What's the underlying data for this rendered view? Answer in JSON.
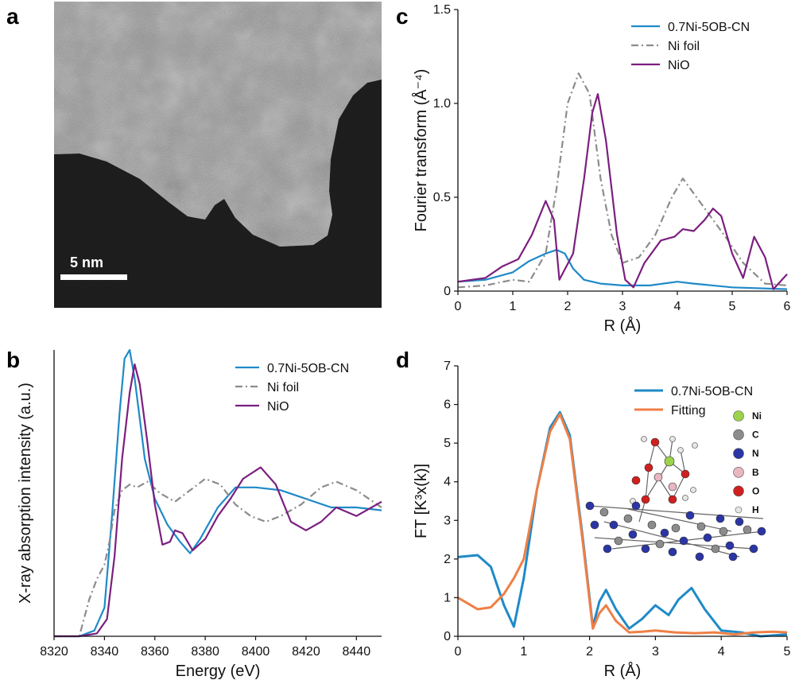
{
  "panels": {
    "a": {
      "letter": "a",
      "scalebar_label": "5 nm"
    },
    "b": {
      "letter": "b"
    },
    "c": {
      "letter": "c"
    },
    "d": {
      "letter": "d"
    }
  },
  "colors": {
    "blue": "#1f8ac8",
    "gray": "#8c8c8c",
    "purple": "#7b1f7f",
    "orange": "#ef7f45"
  },
  "molecule_legend": [
    {
      "symbol": "Ni",
      "color": "#9bd34a"
    },
    {
      "symbol": "C",
      "color": "#8c8c8c"
    },
    {
      "symbol": "N",
      "color": "#2b35a5"
    },
    {
      "symbol": "B",
      "color": "#e8b7c2"
    },
    {
      "symbol": "O",
      "color": "#d01f1f"
    },
    {
      "symbol": "H",
      "color": "#e6e6e6"
    }
  ],
  "chart_data": [
    {
      "id": "b",
      "type": "line",
      "xlabel": "Energy (eV)",
      "ylabel": "X-ray absorption intensity (a.u.)",
      "xlim": [
        8320,
        8450
      ],
      "ylim": [
        0,
        1
      ],
      "xticks": [
        "8320",
        "8340",
        "8360",
        "8380",
        "8400",
        "8420",
        "8440"
      ],
      "yticks": [],
      "legend_position": "top-right",
      "series": [
        {
          "name": "0.7Ni-5OB-CN",
          "color": "#1f8ac8",
          "dash": "solid",
          "x": [
            8320,
            8330,
            8336,
            8340,
            8343,
            8346,
            8348,
            8350,
            8352,
            8354,
            8356,
            8360,
            8365,
            8370,
            8374,
            8378,
            8385,
            8392,
            8400,
            8410,
            8420,
            8430,
            8440,
            8450
          ],
          "y": [
            0.0,
            0.0,
            0.02,
            0.1,
            0.42,
            0.78,
            0.97,
            1.0,
            0.9,
            0.76,
            0.62,
            0.48,
            0.39,
            0.33,
            0.29,
            0.34,
            0.45,
            0.52,
            0.52,
            0.51,
            0.48,
            0.45,
            0.45,
            0.44
          ]
        },
        {
          "name": "Ni foil",
          "color": "#8c8c8c",
          "dash": "dashdot",
          "x": [
            8320,
            8330,
            8334,
            8337,
            8340,
            8342,
            8344,
            8347,
            8350,
            8353,
            8357,
            8362,
            8368,
            8374,
            8380,
            8386,
            8392,
            8398,
            8404,
            8410,
            8418,
            8426,
            8432,
            8440,
            8450
          ],
          "y": [
            0.0,
            0.0,
            0.13,
            0.2,
            0.25,
            0.33,
            0.44,
            0.51,
            0.53,
            0.52,
            0.54,
            0.5,
            0.47,
            0.51,
            0.55,
            0.53,
            0.46,
            0.42,
            0.4,
            0.42,
            0.46,
            0.52,
            0.54,
            0.51,
            0.45
          ]
        },
        {
          "name": "NiO",
          "color": "#7b1f7f",
          "dash": "solid",
          "x": [
            8320,
            8330,
            8337,
            8341,
            8344,
            8347,
            8350,
            8352,
            8354,
            8357,
            8360,
            8363,
            8366,
            8368,
            8371,
            8375,
            8380,
            8385,
            8390,
            8395,
            8402,
            8408,
            8414,
            8420,
            8426,
            8432,
            8440,
            8450
          ],
          "y": [
            0.0,
            0.0,
            0.01,
            0.06,
            0.28,
            0.62,
            0.85,
            0.95,
            0.88,
            0.68,
            0.46,
            0.32,
            0.33,
            0.37,
            0.36,
            0.3,
            0.34,
            0.42,
            0.48,
            0.55,
            0.59,
            0.53,
            0.4,
            0.37,
            0.4,
            0.45,
            0.42,
            0.47
          ]
        }
      ]
    },
    {
      "id": "c",
      "type": "line",
      "xlabel": "R (Å)",
      "ylabel": "Fourier transform (Å⁻⁴)",
      "xlim": [
        0,
        6
      ],
      "ylim": [
        0,
        1.5
      ],
      "xticks": [
        "0",
        "1",
        "2",
        "3",
        "4",
        "5",
        "6"
      ],
      "yticks": [
        "0",
        "0.5",
        "1.0",
        "1.5"
      ],
      "legend_position": "top-right",
      "series": [
        {
          "name": "0.7Ni-5OB-CN",
          "color": "#1f8ac8",
          "dash": "solid",
          "x": [
            0,
            0.5,
            1.0,
            1.3,
            1.6,
            1.8,
            1.95,
            2.1,
            2.3,
            2.6,
            3.0,
            3.5,
            4.0,
            4.3,
            5.0,
            6.0
          ],
          "y": [
            0.05,
            0.06,
            0.1,
            0.16,
            0.2,
            0.22,
            0.2,
            0.12,
            0.06,
            0.04,
            0.03,
            0.03,
            0.05,
            0.04,
            0.02,
            0.01
          ]
        },
        {
          "name": "Ni foil",
          "color": "#8c8c8c",
          "dash": "dashdot",
          "x": [
            0,
            0.5,
            1.0,
            1.3,
            1.6,
            1.8,
            2.0,
            2.2,
            2.4,
            2.6,
            2.8,
            3.0,
            3.3,
            3.6,
            3.9,
            4.1,
            4.3,
            4.6,
            4.9,
            5.2,
            5.6,
            6.0
          ],
          "y": [
            0.02,
            0.03,
            0.06,
            0.05,
            0.2,
            0.55,
            1.0,
            1.16,
            1.05,
            0.6,
            0.3,
            0.15,
            0.18,
            0.3,
            0.5,
            0.6,
            0.52,
            0.4,
            0.28,
            0.15,
            0.04,
            0.03
          ]
        },
        {
          "name": "NiO",
          "color": "#7b1f7f",
          "dash": "solid",
          "x": [
            0,
            0.5,
            0.8,
            1.1,
            1.35,
            1.6,
            1.75,
            1.85,
            2.1,
            2.3,
            2.45,
            2.55,
            2.7,
            2.9,
            3.05,
            3.2,
            3.4,
            3.7,
            3.95,
            4.1,
            4.3,
            4.5,
            4.65,
            4.8,
            5.0,
            5.2,
            5.4,
            5.6,
            5.75,
            6.0
          ],
          "y": [
            0.05,
            0.07,
            0.13,
            0.17,
            0.3,
            0.48,
            0.38,
            0.06,
            0.2,
            0.6,
            0.95,
            1.05,
            0.8,
            0.3,
            0.06,
            0.02,
            0.15,
            0.27,
            0.29,
            0.33,
            0.32,
            0.38,
            0.44,
            0.4,
            0.2,
            0.07,
            0.29,
            0.18,
            0.01,
            0.09
          ]
        }
      ]
    },
    {
      "id": "d",
      "type": "line",
      "xlabel": "R (Å)",
      "ylabel": "FT [K³x(k)]",
      "xlim": [
        0,
        5
      ],
      "ylim": [
        0,
        7
      ],
      "xticks": [
        "0",
        "1",
        "2",
        "3",
        "4",
        "5"
      ],
      "yticks": [
        "0",
        "1",
        "2",
        "3",
        "4",
        "5",
        "6",
        "7"
      ],
      "legend_position": "top-right",
      "series": [
        {
          "name": "0.7Ni-5OB-CN",
          "color": "#1f8ac8",
          "dash": "solid",
          "x": [
            0,
            0.3,
            0.5,
            0.7,
            0.85,
            1.0,
            1.2,
            1.4,
            1.55,
            1.7,
            1.9,
            2.05,
            2.15,
            2.25,
            2.4,
            2.6,
            2.8,
            3.0,
            3.2,
            3.35,
            3.55,
            3.75,
            4.0,
            4.3,
            4.6,
            5.0
          ],
          "y": [
            2.05,
            2.1,
            1.8,
            0.8,
            0.25,
            1.5,
            3.8,
            5.4,
            5.8,
            5.2,
            2.5,
            0.25,
            0.9,
            1.2,
            0.7,
            0.2,
            0.45,
            0.8,
            0.55,
            0.95,
            1.25,
            0.7,
            0.15,
            0.1,
            0.0,
            0.05
          ]
        },
        {
          "name": "Fitting",
          "color": "#ef7f45",
          "dash": "solid",
          "x": [
            0,
            0.15,
            0.3,
            0.5,
            0.7,
            0.85,
            1.0,
            1.2,
            1.4,
            1.55,
            1.7,
            1.9,
            2.05,
            2.15,
            2.25,
            2.4,
            2.6,
            2.8,
            3.0,
            3.3,
            3.6,
            3.9,
            4.2,
            4.5,
            4.8,
            5.0
          ],
          "y": [
            1.0,
            0.85,
            0.7,
            0.75,
            1.1,
            1.5,
            2.0,
            3.8,
            5.3,
            5.75,
            5.1,
            2.4,
            0.2,
            0.6,
            0.8,
            0.4,
            0.1,
            0.12,
            0.15,
            0.1,
            0.08,
            0.1,
            0.05,
            0.1,
            0.12,
            0.1
          ]
        }
      ]
    }
  ]
}
